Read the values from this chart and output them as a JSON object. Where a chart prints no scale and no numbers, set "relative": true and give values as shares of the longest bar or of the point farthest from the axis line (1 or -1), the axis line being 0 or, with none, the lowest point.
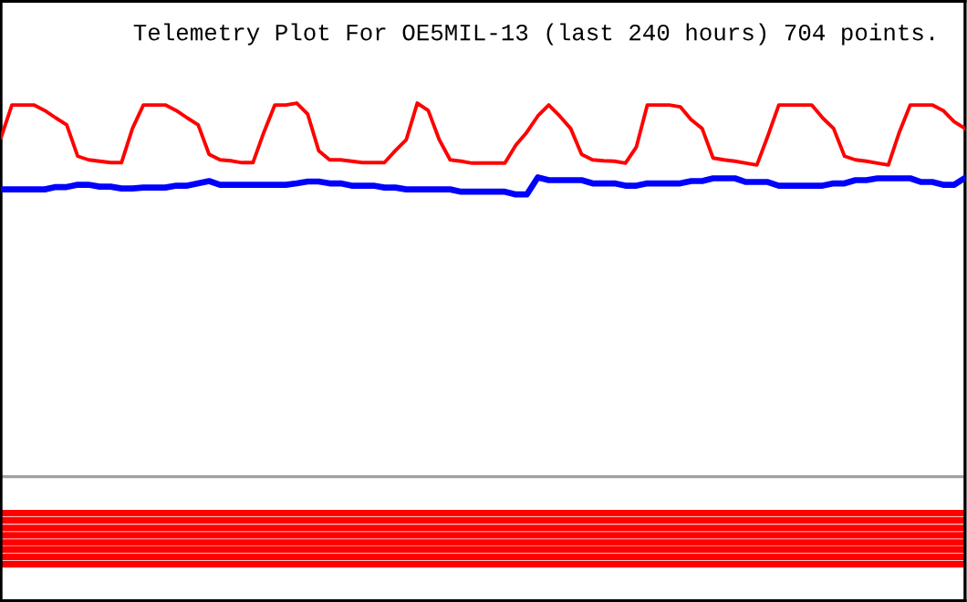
{
  "chart_data": {
    "type": "line",
    "title": "Telemetry Plot For OE5MIL-13 (last 240 hours) 704 points.",
    "relative": true,
    "categories": [
      null,
      null,
      null,
      null,
      null,
      null,
      null,
      null,
      null,
      null,
      null,
      null,
      null,
      null,
      null,
      null,
      null,
      null,
      null,
      null,
      null,
      null,
      null,
      null,
      null,
      null,
      null,
      null,
      null,
      null,
      null,
      null,
      null,
      null,
      null,
      null,
      null,
      null,
      null,
      null,
      null,
      null,
      null,
      null,
      null,
      null,
      null,
      null,
      null,
      null,
      null,
      null,
      null,
      null,
      null,
      null,
      null,
      null,
      null,
      null,
      null,
      null,
      null,
      null,
      null,
      null,
      null,
      null,
      null,
      null,
      null,
      null,
      null,
      null,
      null,
      null,
      null,
      null,
      null,
      null,
      null,
      null,
      null,
      null,
      null,
      null,
      null,
      null,
      null
    ],
    "series": [
      {
        "color": "#ff0000",
        "values": [
          0.925,
          0.996,
          0.996,
          0.996,
          0.984,
          0.968,
          0.953,
          0.885,
          0.877,
          0.874,
          0.871,
          0.871,
          0.945,
          0.996,
          0.996,
          0.996,
          0.984,
          0.968,
          0.953,
          0.889,
          0.877,
          0.875,
          0.871,
          0.871,
          0.937,
          0.996,
          0.996,
          1.0,
          0.976,
          0.897,
          0.877,
          0.877,
          0.874,
          0.871,
          0.871,
          0.871,
          0.897,
          0.921,
          1.0,
          0.984,
          0.921,
          0.877,
          0.874,
          0.87,
          0.87,
          0.87,
          0.87,
          0.909,
          0.937,
          0.972,
          0.996,
          0.972,
          0.945,
          0.889,
          0.877,
          0.875,
          0.874,
          0.87,
          0.905,
          0.996,
          0.996,
          0.996,
          0.992,
          0.964,
          0.945,
          0.881,
          0.877,
          0.874,
          0.87,
          0.866,
          0.929,
          0.996,
          0.996,
          0.996,
          0.996,
          0.968,
          0.945,
          0.885,
          0.877,
          0.874,
          0.87,
          0.866,
          0.937,
          0.996,
          0.996,
          0.996,
          0.984,
          0.96,
          0.945
        ]
      },
      {
        "color": "#0000ff",
        "values": [
          0.813,
          0.813,
          0.813,
          0.813,
          0.813,
          0.818,
          0.818,
          0.823,
          0.823,
          0.819,
          0.819,
          0.815,
          0.815,
          0.817,
          0.817,
          0.817,
          0.821,
          0.821,
          0.826,
          0.831,
          0.823,
          0.823,
          0.823,
          0.823,
          0.823,
          0.823,
          0.823,
          0.826,
          0.83,
          0.83,
          0.826,
          0.826,
          0.821,
          0.821,
          0.821,
          0.817,
          0.817,
          0.813,
          0.813,
          0.813,
          0.813,
          0.813,
          0.808,
          0.808,
          0.808,
          0.808,
          0.808,
          0.802,
          0.802,
          0.839,
          0.833,
          0.833,
          0.833,
          0.833,
          0.826,
          0.826,
          0.826,
          0.821,
          0.821,
          0.826,
          0.826,
          0.826,
          0.826,
          0.831,
          0.831,
          0.837,
          0.837,
          0.837,
          0.829,
          0.829,
          0.829,
          0.821,
          0.821,
          0.821,
          0.821,
          0.821,
          0.826,
          0.826,
          0.833,
          0.833,
          0.837,
          0.837,
          0.837,
          0.837,
          0.829,
          0.829,
          0.823,
          0.823,
          0.838
        ]
      }
    ],
    "ref_lines": [
      {
        "axis": "y",
        "value": 0.19,
        "color": "#a0a0a0"
      },
      {
        "axis": "y",
        "value": 0.111,
        "color": "#ff0000"
      },
      {
        "axis": "y",
        "value": 0.095,
        "color": "#ff0000"
      },
      {
        "axis": "y",
        "value": 0.079,
        "color": "#ff0000"
      },
      {
        "axis": "y",
        "value": 0.063,
        "color": "#ff0000"
      },
      {
        "axis": "y",
        "value": 0.047,
        "color": "#ff0000"
      },
      {
        "axis": "y",
        "value": 0.032,
        "color": "#ff0000"
      },
      {
        "axis": "y",
        "value": 0.016,
        "color": "#ff0000"
      },
      {
        "axis": "y",
        "value": 0,
        "color": "#ff0000"
      }
    ]
  }
}
